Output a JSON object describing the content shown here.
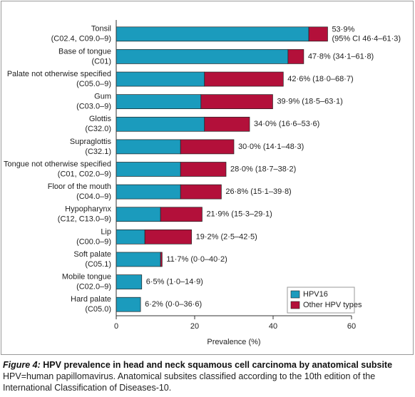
{
  "chart_data": {
    "type": "stacked-barh",
    "categories": [
      "Tonsil",
      "Base of tongue",
      "Palate not otherwise specified",
      "Gum",
      "Glottis",
      "Supraglottis",
      "Tongue not otherwise specified",
      "Floor of the mouth",
      "Hypopharynx",
      "Lip",
      "Soft palate",
      "Mobile tongue",
      "Hard palate"
    ],
    "category_codes": [
      "(C02.4, C09.0–9)",
      "(C01)",
      "(C05.0–9)",
      "(C03.0–9)",
      "(C32.0)",
      "(C32.1)",
      "(C01, C02.0–9)",
      "(C04.0–9)",
      "(C12, C13.0–9)",
      "(C00.0–9)",
      "(C05.1)",
      "(C02.0–9)",
      "(C05.0)"
    ],
    "series": [
      {
        "name": "HPV16",
        "color": "#1b9bbd",
        "values": [
          49.1,
          43.8,
          22.5,
          21.6,
          22.5,
          16.4,
          16.4,
          16.4,
          11.3,
          7.3,
          11.3,
          6.5,
          6.2
        ]
      },
      {
        "name": "Other HPV types",
        "color": "#b3103a",
        "values": [
          4.8,
          4.0,
          20.1,
          18.3,
          11.5,
          13.6,
          11.6,
          10.4,
          10.6,
          11.9,
          0.4,
          0,
          0
        ]
      }
    ],
    "totals": {
      "values": [
        53.9,
        47.8,
        42.6,
        39.9,
        34.0,
        30.0,
        28.0,
        26.8,
        21.9,
        19.2,
        11.7,
        6.5,
        6.2
      ],
      "value_labels": [
        "53·9%\n(95% CI 46·4–61·3)",
        "47·8% (34·1–61·8)",
        "42·6% (18·0–68·7)",
        "39·9% (18·5–63·1)",
        "34·0% (16·6–53·6)",
        "30·0% (14·1–48·3)",
        "28·0% (18·7–38·2)",
        "26·8% (15·1–39·8)",
        "21·9% (15·3–29·1)",
        "19·2% (2·5–42·5)",
        "11·7% (0·0–40·2)",
        "6·5% (1·0–14·9)",
        "6·2% (0·0–36·6)"
      ]
    },
    "xlabel": "Prevalence (%)",
    "xlim": [
      0,
      60
    ],
    "xticks": [
      0,
      20,
      40,
      60
    ],
    "legend": "lower right"
  },
  "caption": {
    "label": "Figure 4:",
    "title": "HPV prevalence in head and neck squamous cell carcinoma by anatomical subsite",
    "text": "HPV=human papillomavirus. Anatomical subsites classified according to the 10th edition of the International Classification of Diseases-10."
  }
}
